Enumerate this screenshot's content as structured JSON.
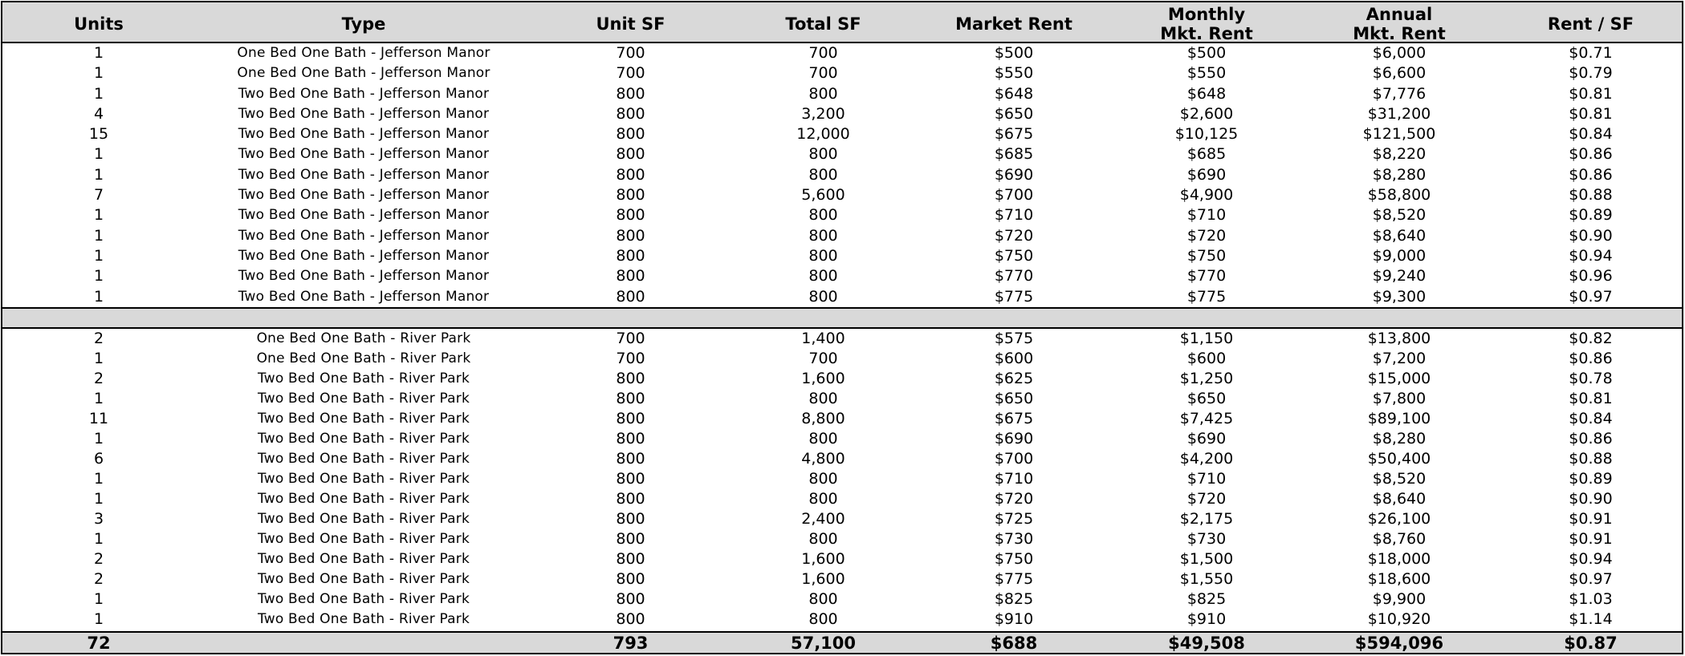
{
  "headers": {
    "units": "Units",
    "type": "Type",
    "unit_sf": "Unit SF",
    "total_sf": "Total SF",
    "market_rent": "Market Rent",
    "monthly_line1": "Monthly",
    "monthly_line2": "Mkt. Rent",
    "annual_line1": "Annual",
    "annual_line2": "Mkt. Rent",
    "rent_sf": "Rent / SF"
  },
  "section1": [
    {
      "units": "1",
      "type": "One Bed One Bath - Jefferson Manor",
      "unit_sf": "700",
      "total_sf": "700",
      "market_rent": "$500",
      "monthly": "$500",
      "annual": "$6,000",
      "rent_sf": "$0.71"
    },
    {
      "units": "1",
      "type": "One Bed One Bath - Jefferson Manor",
      "unit_sf": "700",
      "total_sf": "700",
      "market_rent": "$550",
      "monthly": "$550",
      "annual": "$6,600",
      "rent_sf": "$0.79"
    },
    {
      "units": "1",
      "type": "Two Bed One Bath - Jefferson Manor",
      "unit_sf": "800",
      "total_sf": "800",
      "market_rent": "$648",
      "monthly": "$648",
      "annual": "$7,776",
      "rent_sf": "$0.81"
    },
    {
      "units": "4",
      "type": "Two Bed One Bath - Jefferson Manor",
      "unit_sf": "800",
      "total_sf": "3,200",
      "market_rent": "$650",
      "monthly": "$2,600",
      "annual": "$31,200",
      "rent_sf": "$0.81"
    },
    {
      "units": "15",
      "type": "Two Bed One Bath - Jefferson Manor",
      "unit_sf": "800",
      "total_sf": "12,000",
      "market_rent": "$675",
      "monthly": "$10,125",
      "annual": "$121,500",
      "rent_sf": "$0.84"
    },
    {
      "units": "1",
      "type": "Two Bed One Bath - Jefferson Manor",
      "unit_sf": "800",
      "total_sf": "800",
      "market_rent": "$685",
      "monthly": "$685",
      "annual": "$8,220",
      "rent_sf": "$0.86"
    },
    {
      "units": "1",
      "type": "Two Bed One Bath - Jefferson Manor",
      "unit_sf": "800",
      "total_sf": "800",
      "market_rent": "$690",
      "monthly": "$690",
      "annual": "$8,280",
      "rent_sf": "$0.86"
    },
    {
      "units": "7",
      "type": "Two Bed One Bath - Jefferson Manor",
      "unit_sf": "800",
      "total_sf": "5,600",
      "market_rent": "$700",
      "monthly": "$4,900",
      "annual": "$58,800",
      "rent_sf": "$0.88"
    },
    {
      "units": "1",
      "type": "Two Bed One Bath - Jefferson Manor",
      "unit_sf": "800",
      "total_sf": "800",
      "market_rent": "$710",
      "monthly": "$710",
      "annual": "$8,520",
      "rent_sf": "$0.89"
    },
    {
      "units": "1",
      "type": "Two Bed One Bath - Jefferson Manor",
      "unit_sf": "800",
      "total_sf": "800",
      "market_rent": "$720",
      "monthly": "$720",
      "annual": "$8,640",
      "rent_sf": "$0.90"
    },
    {
      "units": "1",
      "type": "Two Bed One Bath - Jefferson Manor",
      "unit_sf": "800",
      "total_sf": "800",
      "market_rent": "$750",
      "monthly": "$750",
      "annual": "$9,000",
      "rent_sf": "$0.94"
    },
    {
      "units": "1",
      "type": "Two Bed One Bath - Jefferson Manor",
      "unit_sf": "800",
      "total_sf": "800",
      "market_rent": "$770",
      "monthly": "$770",
      "annual": "$9,240",
      "rent_sf": "$0.96"
    },
    {
      "units": "1",
      "type": "Two Bed One Bath - Jefferson Manor",
      "unit_sf": "800",
      "total_sf": "800",
      "market_rent": "$775",
      "monthly": "$775",
      "annual": "$9,300",
      "rent_sf": "$0.97"
    }
  ],
  "section2": [
    {
      "units": "2",
      "type": "One Bed One Bath - River Park",
      "unit_sf": "700",
      "total_sf": "1,400",
      "market_rent": "$575",
      "monthly": "$1,150",
      "annual": "$13,800",
      "rent_sf": "$0.82"
    },
    {
      "units": "1",
      "type": "One Bed One Bath - River Park",
      "unit_sf": "700",
      "total_sf": "700",
      "market_rent": "$600",
      "monthly": "$600",
      "annual": "$7,200",
      "rent_sf": "$0.86"
    },
    {
      "units": "2",
      "type": "Two Bed One Bath - River Park",
      "unit_sf": "800",
      "total_sf": "1,600",
      "market_rent": "$625",
      "monthly": "$1,250",
      "annual": "$15,000",
      "rent_sf": "$0.78"
    },
    {
      "units": "1",
      "type": "Two Bed One Bath - River Park",
      "unit_sf": "800",
      "total_sf": "800",
      "market_rent": "$650",
      "monthly": "$650",
      "annual": "$7,800",
      "rent_sf": "$0.81"
    },
    {
      "units": "11",
      "type": "Two Bed One Bath - River Park",
      "unit_sf": "800",
      "total_sf": "8,800",
      "market_rent": "$675",
      "monthly": "$7,425",
      "annual": "$89,100",
      "rent_sf": "$0.84"
    },
    {
      "units": "1",
      "type": "Two Bed One Bath - River Park",
      "unit_sf": "800",
      "total_sf": "800",
      "market_rent": "$690",
      "monthly": "$690",
      "annual": "$8,280",
      "rent_sf": "$0.86"
    },
    {
      "units": "6",
      "type": "Two Bed One Bath - River Park",
      "unit_sf": "800",
      "total_sf": "4,800",
      "market_rent": "$700",
      "monthly": "$4,200",
      "annual": "$50,400",
      "rent_sf": "$0.88"
    },
    {
      "units": "1",
      "type": "Two Bed One Bath - River Park",
      "unit_sf": "800",
      "total_sf": "800",
      "market_rent": "$710",
      "monthly": "$710",
      "annual": "$8,520",
      "rent_sf": "$0.89"
    },
    {
      "units": "1",
      "type": "Two Bed One Bath - River Park",
      "unit_sf": "800",
      "total_sf": "800",
      "market_rent": "$720",
      "monthly": "$720",
      "annual": "$8,640",
      "rent_sf": "$0.90"
    },
    {
      "units": "3",
      "type": "Two Bed One Bath - River Park",
      "unit_sf": "800",
      "total_sf": "2,400",
      "market_rent": "$725",
      "monthly": "$2,175",
      "annual": "$26,100",
      "rent_sf": "$0.91"
    },
    {
      "units": "1",
      "type": "Two Bed One Bath - River Park",
      "unit_sf": "800",
      "total_sf": "800",
      "market_rent": "$730",
      "monthly": "$730",
      "annual": "$8,760",
      "rent_sf": "$0.91"
    },
    {
      "units": "2",
      "type": "Two Bed One Bath - River Park",
      "unit_sf": "800",
      "total_sf": "1,600",
      "market_rent": "$750",
      "monthly": "$1,500",
      "annual": "$18,000",
      "rent_sf": "$0.94"
    },
    {
      "units": "2",
      "type": "Two Bed One Bath - River Park",
      "unit_sf": "800",
      "total_sf": "1,600",
      "market_rent": "$775",
      "monthly": "$1,550",
      "annual": "$18,600",
      "rent_sf": "$0.97"
    },
    {
      "units": "1",
      "type": "Two Bed One Bath - River Park",
      "unit_sf": "800",
      "total_sf": "800",
      "market_rent": "$825",
      "monthly": "$825",
      "annual": "$9,900",
      "rent_sf": "$1.03"
    },
    {
      "units": "1",
      "type": "Two Bed One Bath - River Park",
      "unit_sf": "800",
      "total_sf": "800",
      "market_rent": "$910",
      "monthly": "$910",
      "annual": "$10,920",
      "rent_sf": "$1.14"
    }
  ],
  "totals": {
    "units": "72",
    "type": "",
    "unit_sf": "793",
    "total_sf": "57,100",
    "market_rent": "$688",
    "monthly": "$49,508",
    "annual": "$594,096",
    "rent_sf": "$0.87"
  }
}
